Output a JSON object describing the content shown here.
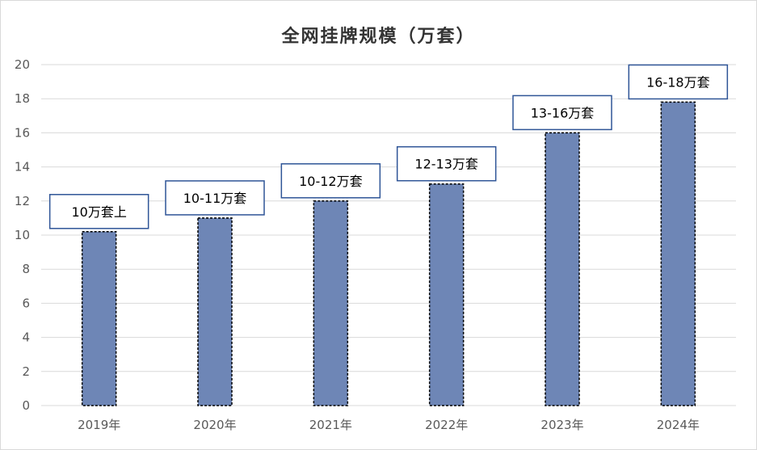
{
  "chart_data": {
    "type": "bar",
    "title": "全网挂牌规模（万套）",
    "categories": [
      "2019年",
      "2020年",
      "2021年",
      "2022年",
      "2023年",
      "2024年"
    ],
    "values": [
      10.2,
      11,
      12,
      13,
      16,
      17.8
    ],
    "data_labels": [
      "10万套上",
      "10-11万套",
      "10-12万套",
      "12-13万套",
      "13-16万套",
      "16-18万套"
    ],
    "ylim": [
      0,
      20
    ],
    "yticks": [
      0,
      2,
      4,
      6,
      8,
      10,
      12,
      14,
      16,
      18,
      20
    ],
    "xlabel": "",
    "ylabel": "",
    "grid": true,
    "legend": "none",
    "colors": {
      "bar_fill": "#6e86b6",
      "bar_border": "#000000",
      "grid": "#d9d9d9",
      "callout_border": "#2f5597"
    }
  }
}
